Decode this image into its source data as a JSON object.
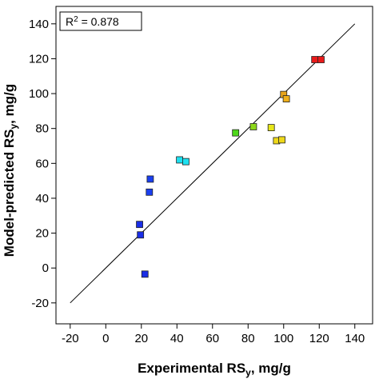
{
  "chart_data": {
    "type": "scatter",
    "xlabel": {
      "main": "Experimental RS",
      "sub": "y",
      "unit": ", mg/g"
    },
    "ylabel": {
      "main": "Model-predicted RS",
      "sub": "y",
      "unit": ", mg/g"
    },
    "xlim": [
      -28,
      150
    ],
    "ylim": [
      -32,
      150
    ],
    "xticks": [
      -20,
      0,
      20,
      40,
      60,
      80,
      100,
      120,
      140
    ],
    "yticks": [
      -20,
      0,
      20,
      40,
      60,
      80,
      100,
      120,
      140
    ],
    "xtick_labels": [
      "-20",
      "0",
      "20",
      "40",
      "60",
      "80",
      "100",
      "120",
      "140"
    ],
    "ytick_labels": [
      "-20",
      "0",
      "20",
      "40",
      "60",
      "80",
      "100",
      "120",
      "140"
    ],
    "annotation": {
      "prefix": "R",
      "sup": "2",
      "suffix": " = 0.878"
    },
    "reference_line": {
      "from": [
        -20,
        -20
      ],
      "to": [
        140,
        140
      ]
    },
    "grid": false,
    "points": [
      {
        "x": 22.0,
        "y": -3.5,
        "color": "#1a2ee6"
      },
      {
        "x": 19.5,
        "y": 19.0,
        "color": "#1a2ee6"
      },
      {
        "x": 19.0,
        "y": 25.0,
        "color": "#1a2ee6"
      },
      {
        "x": 24.5,
        "y": 43.5,
        "color": "#1a3ff0"
      },
      {
        "x": 25.0,
        "y": 51.0,
        "color": "#1a3ff0"
      },
      {
        "x": 41.5,
        "y": 62.0,
        "color": "#1ee0f0"
      },
      {
        "x": 45.0,
        "y": 61.0,
        "color": "#1ee0f0"
      },
      {
        "x": 73.0,
        "y": 77.5,
        "color": "#4ed81a"
      },
      {
        "x": 83.0,
        "y": 81.0,
        "color": "#8cd81a"
      },
      {
        "x": 93.0,
        "y": 80.5,
        "color": "#e6e61a"
      },
      {
        "x": 96.0,
        "y": 73.0,
        "color": "#eed81a"
      },
      {
        "x": 99.0,
        "y": 73.5,
        "color": "#eed81a"
      },
      {
        "x": 100.0,
        "y": 99.5,
        "color": "#e8a41a"
      },
      {
        "x": 101.5,
        "y": 97.0,
        "color": "#f0b01a"
      },
      {
        "x": 117.5,
        "y": 119.5,
        "color": "#e81a1a"
      },
      {
        "x": 121.0,
        "y": 119.5,
        "color": "#e81a1a"
      }
    ]
  }
}
